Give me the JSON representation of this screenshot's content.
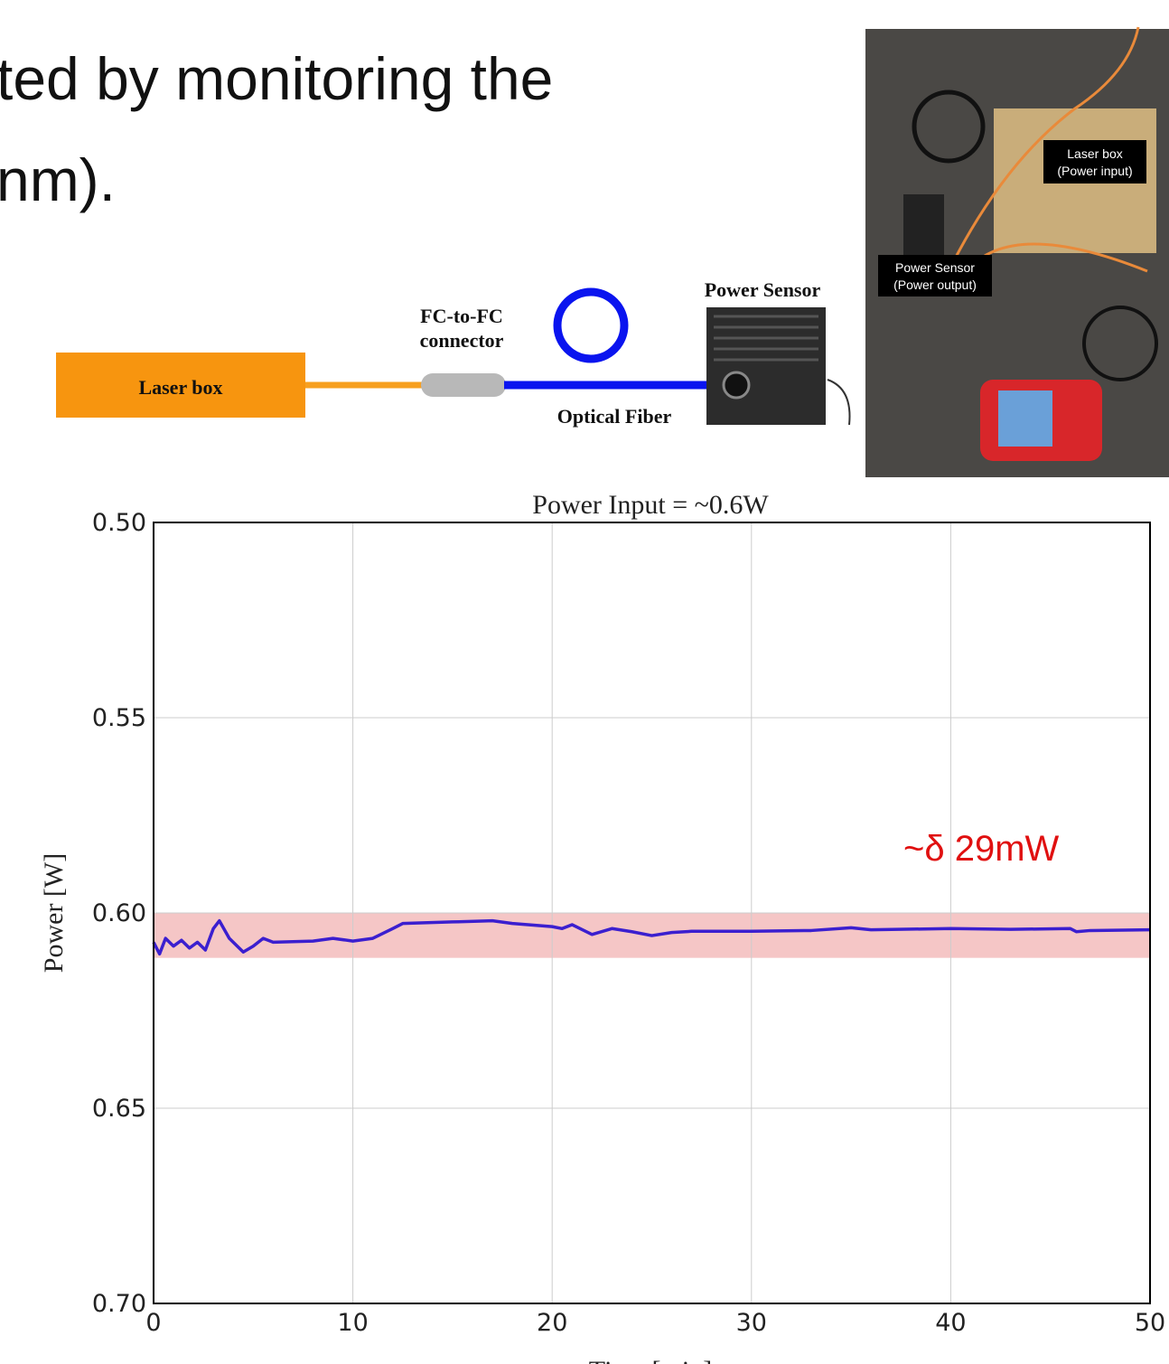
{
  "slide_text": [
    "ted by monitoring the",
    "nm)."
  ],
  "diagram": {
    "laser_box": "Laser box",
    "connector_line1": "FC-to-FC",
    "connector_line2": "connector",
    "fiber": "Optical Fiber",
    "sensor": "Power Sensor"
  },
  "photo": {
    "laser_label_line1": "Laser box",
    "laser_label_line2": "(Power input)",
    "sensor_label_line1": "Power Sensor",
    "sensor_label_line2": "(Power output)"
  },
  "chart_data": {
    "type": "line",
    "title": "Power Input = ~0.6W",
    "x_label": "Time [min]",
    "y_label": "Power [W]",
    "annotation": "~δ 29mW",
    "x": [
      0,
      0.3,
      0.6,
      1,
      1.4,
      1.8,
      2.2,
      2.6,
      3,
      3.3,
      3.8,
      4.5,
      5,
      5.5,
      6,
      8,
      9,
      10,
      11,
      12,
      12.5,
      15,
      17,
      18,
      20,
      20.5,
      21,
      22,
      23,
      24,
      25,
      26,
      27,
      30,
      33,
      35,
      36,
      40,
      43,
      46,
      46.3,
      47,
      50
    ],
    "series": [
      {
        "color": "#3b1fcf",
        "values": [
          0.6075,
          0.6105,
          0.6065,
          0.6085,
          0.607,
          0.609,
          0.6075,
          0.6095,
          0.604,
          0.602,
          0.6065,
          0.61,
          0.6085,
          0.6065,
          0.6075,
          0.6072,
          0.6065,
          0.6072,
          0.6065,
          0.604,
          0.6027,
          0.6023,
          0.602,
          0.6027,
          0.6035,
          0.604,
          0.603,
          0.6055,
          0.604,
          0.6048,
          0.6058,
          0.605,
          0.6047,
          0.6047,
          0.6045,
          0.6038,
          0.6043,
          0.604,
          0.6042,
          0.604,
          0.6048,
          0.6045,
          0.6043
        ]
      }
    ],
    "shaded_range": [
      0.6,
      0.6115
    ],
    "shaded_color": "#f5c6c6",
    "xlim": [
      0,
      50
    ],
    "xticks": [
      0,
      10,
      20,
      30,
      40,
      50
    ],
    "ylim": [
      0.7,
      0.5
    ],
    "yticks": [
      {
        "value": 0.5,
        "label": "0.50"
      },
      0.55,
      {
        "value": 0.6,
        "label": "0.60"
      },
      0.65,
      {
        "value": 0.7,
        "label": "0.70"
      }
    ],
    "grid": true
  }
}
